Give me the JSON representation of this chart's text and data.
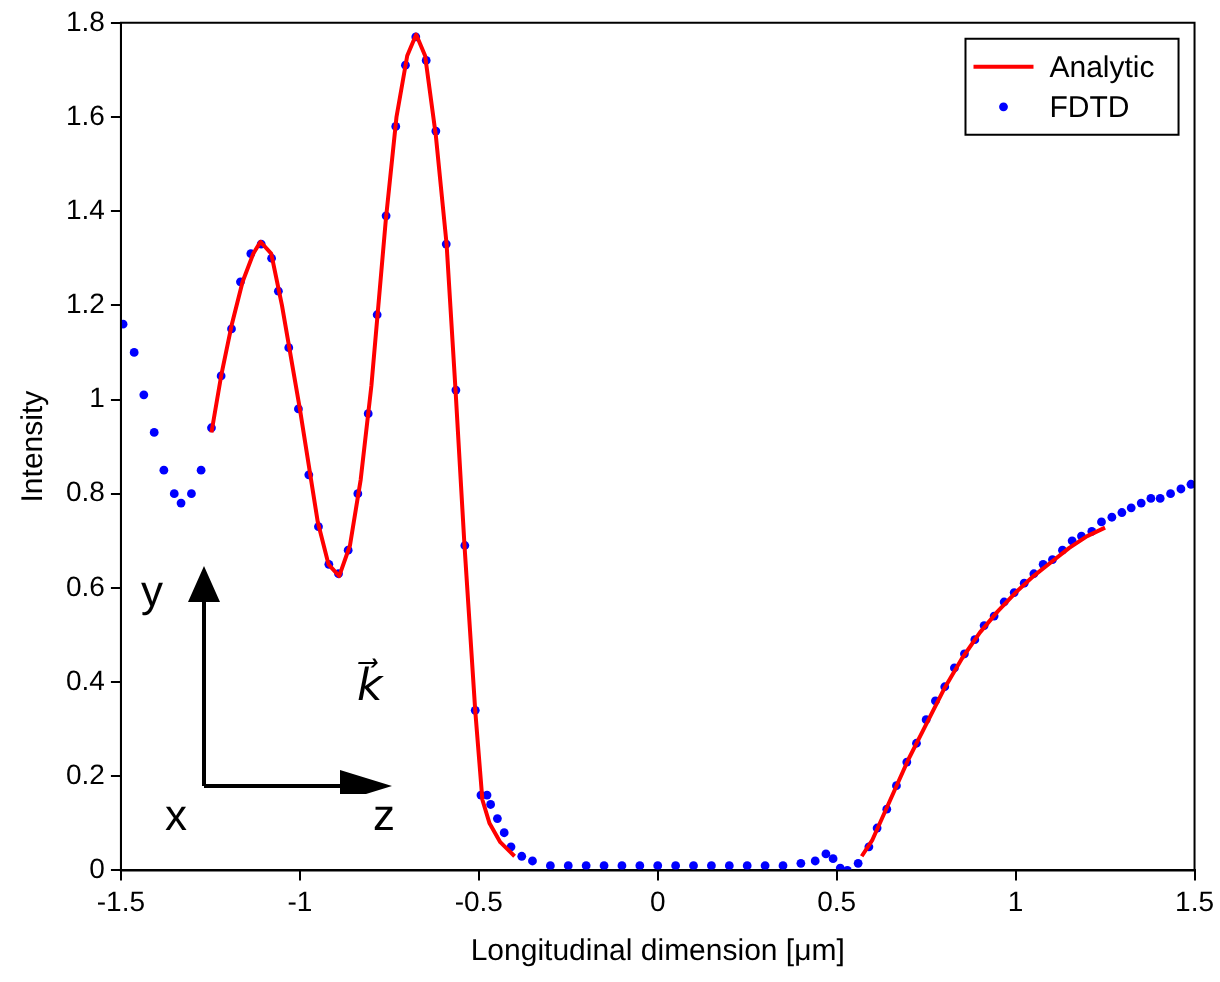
{
  "chart_data": {
    "type": "scatter",
    "xlabel": "Longitudinal dimension [μm]",
    "ylabel": "Intensity",
    "xlim": [
      -1.5,
      1.5
    ],
    "ylim": [
      0,
      1.8
    ],
    "xticks": [
      -1.5,
      -1,
      -0.5,
      0,
      0.5,
      1,
      1.5
    ],
    "yticks": [
      0,
      0.2,
      0.4,
      0.6,
      0.8,
      1,
      1.2,
      1.4,
      1.6,
      1.8
    ],
    "grid": false,
    "legend": "top right",
    "marker": "circle",
    "annotations": [
      "y",
      "x",
      "z",
      "k⃗"
    ],
    "series": [
      {
        "name": "Analytic",
        "type": "line",
        "color": "#ff0000",
        "line_style": "solid",
        "marker": "none",
        "x": [
          -1.247,
          -1.22,
          -1.19,
          -1.16,
          -1.13,
          -1.11,
          -1.08,
          -1.05,
          -1.0,
          -0.95,
          -0.92,
          -0.89,
          -0.86,
          -0.83,
          -0.8,
          -0.76,
          -0.73,
          -0.7,
          -0.675,
          -0.65,
          -0.62,
          -0.59,
          -0.565,
          -0.54,
          -0.51,
          -0.49,
          -0.47,
          -0.44,
          -0.4,
          0,
          0.57,
          0.6,
          0.65,
          0.7,
          0.75,
          0.8,
          0.85,
          0.9,
          0.95,
          1.0,
          1.05,
          1.1,
          1.15,
          1.2,
          1.25
        ],
        "values": [
          0.93,
          1.05,
          1.16,
          1.25,
          1.31,
          1.335,
          1.31,
          1.2,
          0.98,
          0.74,
          0.65,
          0.625,
          0.69,
          0.83,
          1.03,
          1.38,
          1.6,
          1.73,
          1.775,
          1.73,
          1.56,
          1.33,
          1.02,
          0.69,
          0.34,
          0.15,
          0.1,
          0.06,
          0.03,
          null,
          0.03,
          0.065,
          0.15,
          0.235,
          0.31,
          0.385,
          0.45,
          0.505,
          0.55,
          0.59,
          0.625,
          0.655,
          0.685,
          0.71,
          0.728
        ]
      },
      {
        "name": "FDTD",
        "type": "scatter",
        "color": "#0000ff",
        "x": [
          -1.494,
          -1.463,
          -1.436,
          -1.407,
          -1.38,
          -1.351,
          -1.332,
          -1.303,
          -1.276,
          -1.247,
          -1.22,
          -1.191,
          -1.166,
          -1.137,
          -1.108,
          -1.079,
          -1.06,
          -1.031,
          -1.004,
          -0.975,
          -0.948,
          -0.919,
          -0.892,
          -0.865,
          -0.838,
          -0.809,
          -0.784,
          -0.759,
          -0.732,
          -0.705,
          -0.676,
          -0.647,
          -0.62,
          -0.591,
          -0.564,
          -0.539,
          -0.51,
          -0.494,
          -0.477,
          -0.467,
          -0.448,
          -0.429,
          -0.41,
          -0.38,
          -0.35,
          -0.3,
          -0.25,
          -0.2,
          -0.15,
          -0.1,
          -0.05,
          0,
          0.05,
          0.1,
          0.15,
          0.2,
          0.25,
          0.3,
          0.35,
          0.4,
          0.44,
          0.47,
          0.49,
          0.51,
          0.53,
          0.56,
          0.59,
          0.613,
          0.64,
          0.667,
          0.696,
          0.723,
          0.75,
          0.776,
          0.802,
          0.829,
          0.857,
          0.886,
          0.912,
          0.94,
          0.968,
          0.996,
          1.024,
          1.051,
          1.077,
          1.103,
          1.131,
          1.158,
          1.184,
          1.213,
          1.24,
          1.269,
          1.297,
          1.323,
          1.351,
          1.378,
          1.404,
          1.433,
          1.462,
          1.49
        ],
        "values": [
          1.16,
          1.1,
          1.01,
          0.93,
          0.85,
          0.8,
          0.78,
          0.8,
          0.85,
          0.94,
          1.05,
          1.15,
          1.25,
          1.31,
          1.33,
          1.3,
          1.23,
          1.11,
          0.98,
          0.84,
          0.73,
          0.65,
          0.63,
          0.68,
          0.8,
          0.97,
          1.18,
          1.39,
          1.58,
          1.71,
          1.77,
          1.72,
          1.57,
          1.33,
          1.02,
          0.69,
          0.34,
          0.16,
          0.16,
          0.14,
          0.11,
          0.08,
          0.05,
          0.03,
          0.02,
          0.01,
          0.01,
          0.01,
          0.01,
          0.01,
          0.01,
          0.01,
          0.01,
          0.01,
          0.01,
          0.01,
          0.01,
          0.01,
          0.01,
          0.015,
          0.02,
          0.035,
          0.025,
          0.005,
          0.0,
          0.015,
          0.05,
          0.09,
          0.13,
          0.18,
          0.23,
          0.27,
          0.32,
          0.36,
          0.39,
          0.43,
          0.46,
          0.49,
          0.52,
          0.54,
          0.57,
          0.59,
          0.61,
          0.63,
          0.65,
          0.66,
          0.68,
          0.7,
          0.71,
          0.72,
          0.74,
          0.75,
          0.76,
          0.77,
          0.78,
          0.79,
          0.79,
          0.8,
          0.81,
          0.82
        ]
      }
    ]
  }
}
